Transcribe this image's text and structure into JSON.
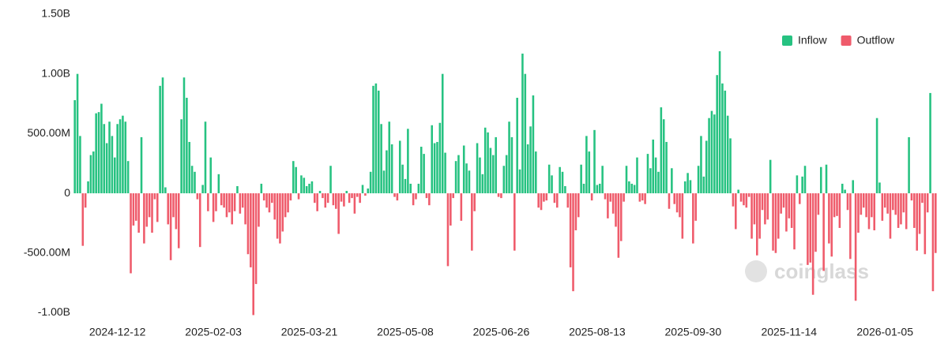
{
  "chart_data": {
    "type": "bar",
    "series": [
      {
        "name": "Inflow",
        "color": "#26c281"
      },
      {
        "name": "Outflow",
        "color": "#ef5b6b"
      }
    ],
    "legend": "top-right",
    "watermark": "coinglass",
    "ylim": [
      -1050,
      1500
    ],
    "yticks": [
      {
        "value": 1500,
        "label": "1.50B"
      },
      {
        "value": 1000,
        "label": "1.00B"
      },
      {
        "value": 500,
        "label": "500.00M"
      },
      0,
      {
        "value": -500,
        "label": "-500.00M"
      },
      {
        "value": -1000,
        "label": "-1.00B"
      }
    ],
    "grid": false,
    "categories": [
      null,
      null,
      null,
      null,
      null,
      null,
      null,
      null,
      null,
      null,
      null,
      null,
      null,
      null,
      null,
      null,
      "2024-12-12",
      null,
      null,
      null,
      null,
      null,
      null,
      null,
      null,
      null,
      null,
      null,
      null,
      null,
      null,
      null,
      null,
      null,
      null,
      null,
      null,
      null,
      null,
      null,
      null,
      null,
      null,
      null,
      null,
      null,
      null,
      null,
      null,
      null,
      null,
      null,
      "2025-02-03",
      null,
      null,
      null,
      null,
      null,
      null,
      null,
      null,
      null,
      null,
      null,
      null,
      null,
      null,
      null,
      null,
      null,
      null,
      null,
      null,
      null,
      null,
      null,
      null,
      null,
      null,
      null,
      null,
      null,
      null,
      null,
      null,
      null,
      null,
      null,
      "2025-03-21",
      null,
      null,
      null,
      null,
      null,
      null,
      null,
      null,
      null,
      null,
      null,
      null,
      null,
      null,
      null,
      null,
      null,
      null,
      null,
      null,
      null,
      null,
      null,
      null,
      null,
      null,
      null,
      null,
      null,
      null,
      null,
      null,
      null,
      null,
      null,
      "2025-05-08",
      null,
      null,
      null,
      null,
      null,
      null,
      null,
      null,
      null,
      null,
      null,
      null,
      null,
      null,
      null,
      null,
      null,
      null,
      null,
      null,
      null,
      null,
      null,
      null,
      null,
      null,
      null,
      null,
      null,
      null,
      null,
      null,
      null,
      null,
      null,
      "2025-06-26",
      null,
      null,
      null,
      null,
      null,
      null,
      null,
      null,
      null,
      null,
      null,
      null,
      null,
      null,
      null,
      null,
      null,
      null,
      null,
      null,
      null,
      null,
      null,
      null,
      null,
      null,
      null,
      null,
      null,
      null,
      null,
      null,
      null,
      null,
      null,
      "2025-08-13",
      null,
      null,
      null,
      null,
      null,
      null,
      null,
      null,
      null,
      null,
      null,
      null,
      null,
      null,
      null,
      null,
      null,
      null,
      null,
      null,
      null,
      null,
      null,
      null,
      null,
      null,
      null,
      null,
      null,
      null,
      null,
      null,
      null,
      null,
      null,
      "2025-09-30",
      null,
      null,
      null,
      null,
      null,
      null,
      null,
      null,
      null,
      null,
      null,
      null,
      null,
      null,
      null,
      null,
      null,
      null,
      null,
      null,
      null,
      null,
      null,
      null,
      null,
      null,
      null,
      null,
      null,
      null,
      null,
      null,
      null,
      null,
      null,
      "2025-11-14",
      null,
      null,
      null,
      null,
      null,
      null,
      null,
      null,
      null,
      null,
      null,
      null,
      null,
      null,
      null,
      null,
      null,
      null,
      null,
      null,
      null,
      null,
      null,
      null,
      null,
      null,
      null,
      null,
      null,
      null,
      null,
      null,
      null,
      null,
      null,
      "2026-01-05",
      null,
      null,
      null,
      null,
      null,
      null,
      null,
      null,
      null,
      null,
      null,
      null,
      null,
      null,
      null,
      null,
      null,
      null,
      null
    ],
    "values": [
      780,
      1000,
      480,
      -440,
      -120,
      100,
      320,
      350,
      670,
      680,
      750,
      580,
      420,
      600,
      480,
      300,
      580,
      620,
      650,
      600,
      270,
      -670,
      -270,
      -230,
      -330,
      470,
      -420,
      -280,
      -200,
      -330,
      -50,
      -240,
      900,
      970,
      50,
      -260,
      -560,
      -200,
      -300,
      -460,
      620,
      970,
      800,
      430,
      230,
      180,
      -50,
      -450,
      70,
      600,
      -150,
      300,
      -240,
      -150,
      160,
      -100,
      -120,
      -200,
      -160,
      -260,
      -150,
      60,
      -170,
      -120,
      -260,
      -510,
      -620,
      -1020,
      -760,
      -280,
      80,
      -60,
      -120,
      -160,
      -80,
      -220,
      -380,
      -420,
      -320,
      -200,
      -160,
      -60,
      270,
      220,
      -50,
      150,
      130,
      60,
      80,
      100,
      -80,
      -150,
      20,
      -40,
      -120,
      -80,
      230,
      -100,
      -130,
      -340,
      -70,
      -110,
      20,
      -80,
      -40,
      -170,
      -30,
      -80,
      70,
      -20,
      40,
      180,
      900,
      920,
      860,
      580,
      190,
      360,
      600,
      410,
      -30,
      -60,
      440,
      240,
      120,
      540,
      80,
      -100,
      -50,
      80,
      390,
      330,
      -40,
      -100,
      570,
      420,
      430,
      590,
      1000,
      340,
      -610,
      -270,
      -40,
      270,
      320,
      -230,
      400,
      250,
      190,
      -480,
      -150,
      420,
      300,
      160,
      550,
      510,
      380,
      320,
      470,
      -30,
      -40,
      230,
      320,
      600,
      470,
      -480,
      800,
      200,
      1170,
      1000,
      410,
      560,
      820,
      350,
      -120,
      -140,
      -70,
      -60,
      240,
      150,
      -80,
      -120,
      220,
      180,
      60,
      -120,
      -620,
      -820,
      -310,
      -200,
      240,
      80,
      480,
      350,
      -60,
      530,
      70,
      80,
      230,
      -50,
      -210,
      -70,
      -170,
      -280,
      -540,
      -400,
      -70,
      230,
      100,
      80,
      70,
      300,
      -70,
      -60,
      -90,
      330,
      210,
      450,
      300,
      180,
      720,
      620,
      430,
      -130,
      210,
      -90,
      -160,
      -200,
      -380,
      100,
      170,
      110,
      -420,
      -230,
      230,
      480,
      140,
      440,
      630,
      690,
      660,
      990,
      1190,
      920,
      860,
      650,
      460,
      -110,
      -300,
      30,
      -70,
      -100,
      -120,
      -30,
      -380,
      -260,
      -520,
      -380,
      -140,
      -260,
      -220,
      280,
      -480,
      -500,
      -380,
      -170,
      -120,
      -320,
      -210,
      -290,
      -470,
      150,
      -90,
      140,
      230,
      -600,
      -580,
      -850,
      -490,
      -180,
      220,
      -650,
      240,
      -420,
      -530,
      -200,
      -190,
      -290,
      80,
      30,
      -140,
      -550,
      110,
      -900,
      -330,
      -180,
      -120,
      -200,
      -300,
      -200,
      -310,
      630,
      90,
      -230,
      -120,
      -170,
      -380,
      -140,
      -180,
      -290,
      -260,
      -160,
      -300,
      470,
      -60,
      -290,
      -480,
      -340,
      -80,
      -510,
      -160,
      840,
      -820,
      -500
    ]
  }
}
